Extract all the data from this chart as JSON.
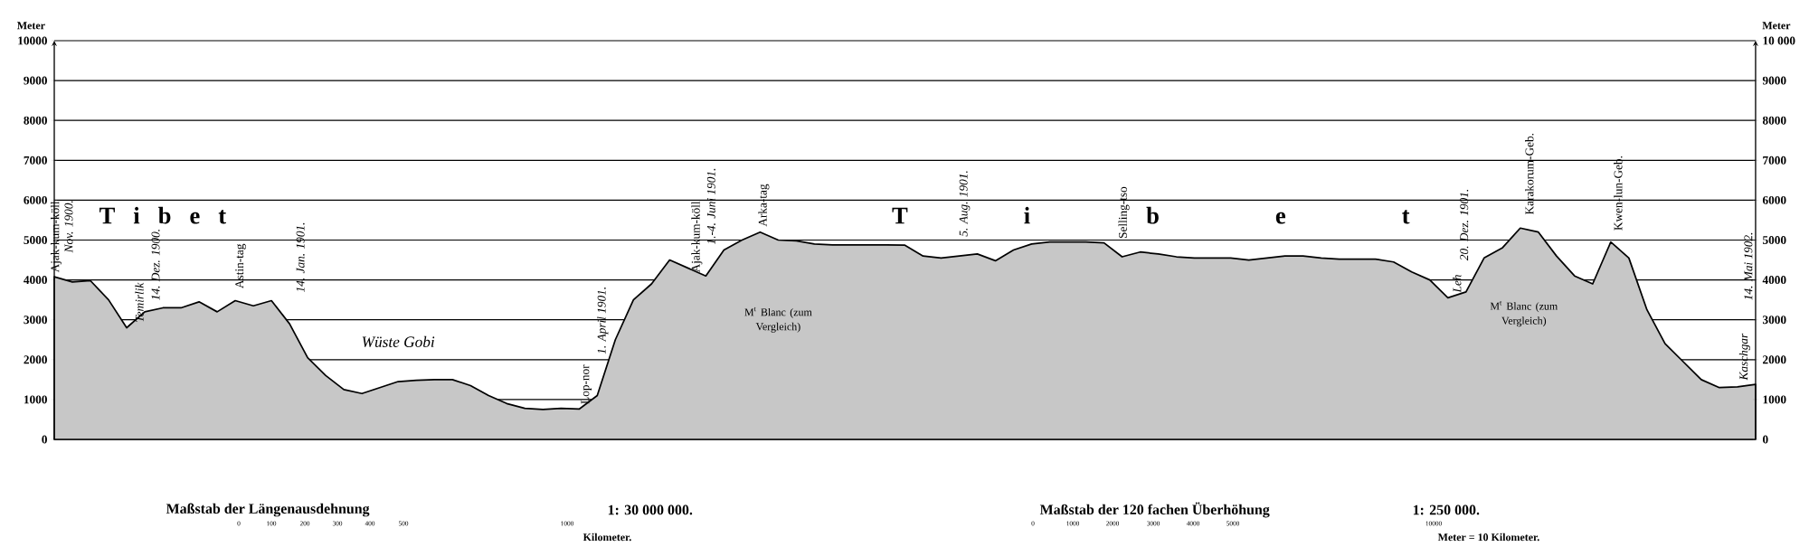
{
  "chart_data": {
    "type": "area",
    "color": "#000000",
    "categories": [
      null,
      null,
      null,
      null,
      null,
      null,
      null,
      null,
      null,
      null,
      null,
      null,
      null,
      null,
      null,
      null,
      null,
      null,
      null,
      null,
      null,
      null,
      null,
      null,
      null,
      null,
      null,
      null,
      null,
      null,
      null,
      null,
      null,
      null,
      null,
      null,
      null,
      null,
      null,
      null,
      null,
      null,
      null,
      null,
      null,
      null,
      null,
      null,
      null,
      null,
      null,
      null,
      null,
      null,
      null,
      null,
      null,
      null,
      null,
      null,
      null,
      null,
      null,
      null,
      null,
      null,
      null,
      null,
      null,
      null,
      null,
      null,
      null,
      null,
      null,
      null,
      null,
      null,
      null,
      null,
      null,
      null,
      null,
      null,
      null,
      null,
      null,
      null,
      null,
      null,
      null,
      null,
      null,
      null,
      null
    ],
    "values": [
      4080,
      3950,
      3980,
      3500,
      2800,
      3200,
      3300,
      3300,
      3450,
      3200,
      3480,
      3350,
      3480,
      2900,
      2050,
      1600,
      1250,
      1150,
      1300,
      1450,
      1480,
      1500,
      1500,
      1350,
      1100,
      900,
      780,
      750,
      780,
      760,
      1100,
      2500,
      3500,
      3900,
      4500,
      4300,
      4100,
      4750,
      5000,
      5200,
      5000,
      4980,
      4900,
      4880,
      4880,
      4880,
      4880,
      4870,
      4600,
      4550,
      4600,
      4650,
      4480,
      4750,
      4900,
      4950,
      4950,
      4950,
      4930,
      4580,
      4700,
      4650,
      4580,
      4550,
      4550,
      4550,
      4500,
      4550,
      4600,
      4600,
      4550,
      4520,
      4520,
      4520,
      4450,
      4200,
      4000,
      3550,
      3700,
      4550,
      4800,
      5300,
      5200,
      4600,
      4100,
      3900,
      4950,
      4550,
      3250,
      2400,
      1950,
      1500,
      1300,
      1320,
      1380
    ],
    "ylim": [
      0,
      10000
    ],
    "yticks": [
      0,
      1000,
      2000,
      3000,
      4000,
      5000,
      6000,
      7000,
      8000,
      9000,
      10000
    ],
    "y2lim": [
      0,
      10000
    ],
    "y2ticks": [
      0,
      1000,
      2000,
      3000,
      4000,
      5000,
      6000,
      7000,
      8000,
      9000,
      {
        "value": 10000,
        "label": "10 000"
      }
    ],
    "ylabel": "Meter",
    "y2label": "Meter",
    "grid": "y",
    "annotations": [
      "Ajak-kum-köll",
      "Nov. 1900.",
      "Temirlik",
      "14. Dez. 1900.",
      "Astin-tag",
      "14. Jan. 1901.",
      "Wüste Gobi",
      "Lop-nor",
      "1. April 1901.",
      "Ajak-kum-köll",
      "1.-4. Juni 1901.",
      "Arka-tag",
      "M$^{t}$ Blanc (zum Vergleich)",
      "5. Aug. 1901.",
      "Selling-tso",
      "Leh",
      "20. Dez. 1901.",
      "Karakorum-Geb.",
      "M$^{t}$ Blanc (zum Vergleich)",
      "Kwen-lun-Geb.",
      "Kaschgar",
      "14. Mai 1902.",
      "T i b e t",
      "T i b e t",
      "Maßstab der Längenausdehnung",
      "1: 30 000 000.",
      "0",
      "100",
      "200",
      "300",
      "400",
      "500",
      "1000",
      "Kilometer.",
      "Maßstab der 120 fachen Überhöhung",
      "1: 250 000.",
      "0",
      "1000",
      "2000",
      "3000",
      "4000",
      "5000",
      "10000",
      "Meter = 10 Kilometer."
    ]
  }
}
